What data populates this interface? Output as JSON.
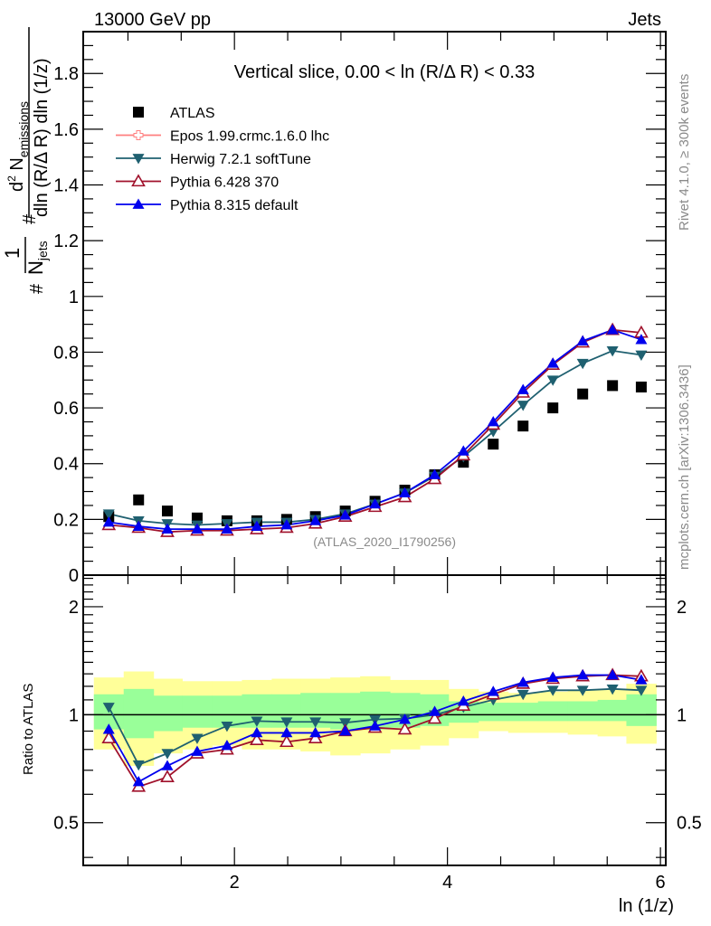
{
  "header": {
    "left": "13000 GeV pp",
    "right": "Jets"
  },
  "side_labels": {
    "rivet": "Rivet 4.1.0, ≥ 300k events",
    "mcplots": "mcplots.cern.ch [arXiv:1306.3436]"
  },
  "chart_data": [
    {
      "type": "scatter",
      "panel": "main",
      "title": "Vertical slice, 0.00 < ln (R/Δ R) < 0.33",
      "annotation": "(ATLAS_2020_I1790256)",
      "ylabel": "#frac{1}{N_jets} #frac{d² N_emissions}{dln (R/Δ R) dln (1/z)}",
      "ylabel_parts": {
        "prefix": "1/N",
        "sub": "jets",
        "num": "d² N",
        "num_sub": "emissions",
        "den": "dln (R/Δ R) dln (1/z)"
      },
      "xlabel": "ln (1/z)",
      "xlim": [
        0.58,
        6.05
      ],
      "ylim": [
        0,
        1.95
      ],
      "yticks": [
        0,
        0.2,
        0.4,
        0.6,
        0.8,
        1,
        1.2,
        1.4,
        1.6,
        1.8
      ],
      "ytick_labels": [
        "0",
        "0.2",
        "0.4",
        "0.6",
        "0.8",
        "1",
        "1.2",
        "1.4",
        "1.6",
        "1.8"
      ],
      "xticks": [
        2,
        4,
        6
      ],
      "legend_position": "top-left",
      "x": [
        0.82,
        1.1,
        1.37,
        1.65,
        1.93,
        2.21,
        2.49,
        2.76,
        3.04,
        3.32,
        3.6,
        3.88,
        4.15,
        4.43,
        4.71,
        4.99,
        5.27,
        5.55,
        5.82
      ],
      "series": [
        {
          "name": "ATLAS",
          "color": "#000000",
          "marker": "square-filled",
          "values": [
            0.21,
            0.27,
            0.23,
            0.205,
            0.195,
            0.195,
            0.2,
            0.21,
            0.23,
            0.265,
            0.305,
            0.36,
            0.405,
            0.47,
            0.535,
            0.6,
            0.65,
            0.68,
            0.675
          ]
        },
        {
          "name": "Epos 1.99.crmc.1.6.0 lhc",
          "color": "#ff7f7f",
          "marker": "cross-open",
          "values": []
        },
        {
          "name": "Herwig 7.2.1 softTune",
          "color": "#1f6070",
          "marker": "triangle-down-filled",
          "values": [
            0.22,
            0.195,
            0.185,
            0.18,
            0.185,
            0.19,
            0.19,
            0.2,
            0.22,
            0.255,
            0.295,
            0.355,
            0.425,
            0.515,
            0.61,
            0.7,
            0.76,
            0.805,
            0.79
          ]
        },
        {
          "name": "Pythia 6.428 370",
          "color": "#a0112b",
          "marker": "triangle-up-open",
          "values": [
            0.18,
            0.17,
            0.155,
            0.16,
            0.16,
            0.165,
            0.17,
            0.185,
            0.21,
            0.245,
            0.28,
            0.345,
            0.43,
            0.54,
            0.655,
            0.755,
            0.835,
            0.88,
            0.87
          ]
        },
        {
          "name": "Pythia 8.315 default",
          "color": "#0000ee",
          "marker": "triangle-up-filled",
          "values": [
            0.19,
            0.175,
            0.165,
            0.165,
            0.165,
            0.175,
            0.18,
            0.195,
            0.215,
            0.255,
            0.295,
            0.36,
            0.445,
            0.55,
            0.665,
            0.76,
            0.84,
            0.88,
            0.845
          ]
        }
      ]
    },
    {
      "type": "line",
      "panel": "ratio",
      "ylabel": "Ratio to ATLAS",
      "xlabel": "ln (1/z)",
      "xlim": [
        0.58,
        6.05
      ],
      "ylim": [
        0.38,
        2.45
      ],
      "yscale": "log",
      "yticks": [
        0.5,
        1,
        2
      ],
      "ytick_labels": [
        "0.5",
        "1",
        "2"
      ],
      "xticks": [
        2,
        4,
        6
      ],
      "xtick_labels": [
        "2",
        "4",
        "6"
      ],
      "reference_line": 1,
      "bin_edges": [
        0.68,
        0.96,
        1.24,
        1.51,
        1.79,
        2.07,
        2.35,
        2.62,
        2.9,
        3.18,
        3.46,
        3.74,
        4.01,
        4.29,
        4.57,
        4.85,
        5.13,
        5.41,
        5.68,
        5.96
      ],
      "band_yellow": {
        "low": [
          0.8,
          0.72,
          0.78,
          0.8,
          0.82,
          0.8,
          0.8,
          0.79,
          0.77,
          0.78,
          0.8,
          0.82,
          0.86,
          0.9,
          0.89,
          0.89,
          0.88,
          0.87,
          0.83
        ],
        "high": [
          1.27,
          1.32,
          1.26,
          1.24,
          1.24,
          1.25,
          1.26,
          1.26,
          1.27,
          1.28,
          1.25,
          1.25,
          1.18,
          1.16,
          1.15,
          1.16,
          1.17,
          1.18,
          1.22
        ]
      },
      "band_green": {
        "low": [
          0.91,
          0.86,
          0.9,
          0.92,
          0.92,
          0.92,
          0.92,
          0.92,
          0.91,
          0.91,
          0.92,
          0.93,
          0.95,
          0.96,
          0.96,
          0.96,
          0.96,
          0.96,
          0.93
        ],
        "high": [
          1.14,
          1.18,
          1.13,
          1.13,
          1.13,
          1.14,
          1.14,
          1.15,
          1.15,
          1.16,
          1.15,
          1.14,
          1.09,
          1.08,
          1.08,
          1.09,
          1.09,
          1.1,
          1.14
        ]
      },
      "x": [
        0.82,
        1.1,
        1.37,
        1.65,
        1.93,
        2.21,
        2.49,
        2.76,
        3.04,
        3.32,
        3.6,
        3.88,
        4.15,
        4.43,
        4.71,
        4.99,
        5.27,
        5.55,
        5.82
      ],
      "series": [
        {
          "name": "Herwig 7.2.1 softTune",
          "color": "#1f6070",
          "marker": "triangle-down-filled",
          "values": [
            1.05,
            0.725,
            0.78,
            0.86,
            0.93,
            0.96,
            0.955,
            0.955,
            0.95,
            0.97,
            0.975,
            1.0,
            1.05,
            1.1,
            1.14,
            1.17,
            1.17,
            1.18,
            1.17
          ]
        },
        {
          "name": "Pythia 6.428 370",
          "color": "#a0112b",
          "marker": "triangle-up-open",
          "values": [
            0.86,
            0.63,
            0.67,
            0.78,
            0.8,
            0.85,
            0.84,
            0.86,
            0.9,
            0.92,
            0.91,
            0.975,
            1.06,
            1.14,
            1.22,
            1.26,
            1.28,
            1.29,
            1.28
          ]
        },
        {
          "name": "Pythia 8.315 default",
          "color": "#0000ee",
          "marker": "triangle-up-filled",
          "values": [
            0.91,
            0.65,
            0.72,
            0.79,
            0.82,
            0.89,
            0.89,
            0.89,
            0.9,
            0.93,
            0.97,
            1.02,
            1.09,
            1.16,
            1.23,
            1.27,
            1.29,
            1.29,
            1.25
          ]
        }
      ]
    }
  ]
}
